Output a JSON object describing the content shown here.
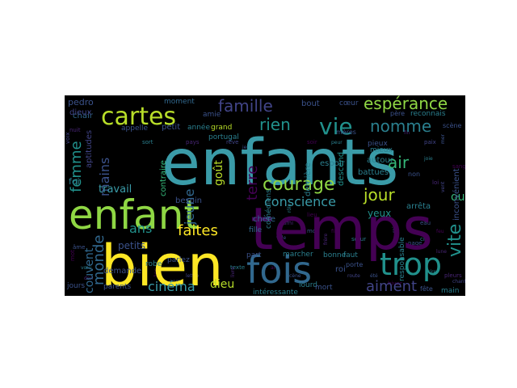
{
  "palette": {
    "background": "#000000",
    "page": "#ffffff",
    "teal": "#2a7f8e",
    "teal_light": "#3a9ba8",
    "yellow_green": "#b8de29",
    "bright_yellow": "#fde725",
    "green": "#5ec962",
    "light_green": "#8fd744",
    "purple": "#482575",
    "deep_purple": "#440154",
    "blue": "#31688e",
    "slate": "#3b528b",
    "mint": "#35b779",
    "sea": "#21918c",
    "grey_blue": "#414487"
  },
  "wordcloud": {
    "words": [
      {
        "text": "enfants",
        "color": "teal_light"
      },
      {
        "text": "temps",
        "color": "deep_purple"
      },
      {
        "text": "bien",
        "color": "bright_yellow"
      },
      {
        "text": "enfant",
        "color": "light_green"
      },
      {
        "text": "fois",
        "color": "blue"
      },
      {
        "text": "trop",
        "color": "sea"
      },
      {
        "text": "cartes",
        "color": "yellow_green"
      },
      {
        "text": "vie",
        "color": "sea"
      },
      {
        "text": "courage",
        "color": "light_green"
      },
      {
        "text": "espérance",
        "color": "light_green"
      },
      {
        "text": "famille",
        "color": "grey_blue"
      },
      {
        "text": "nomme",
        "color": "teal"
      },
      {
        "text": "rien",
        "color": "sea"
      },
      {
        "text": "faites",
        "color": "bright_yellow"
      },
      {
        "text": "aiment",
        "color": "grey_blue"
      },
      {
        "text": "femme",
        "color": "sea"
      },
      {
        "text": "vite",
        "color": "sea"
      },
      {
        "text": "jour",
        "color": "yellow_green"
      },
      {
        "text": "conscience",
        "color": "teal_light"
      },
      {
        "text": "mains",
        "color": "slate"
      },
      {
        "text": "monde",
        "color": "blue"
      },
      {
        "text": "terre",
        "color": "deep_purple"
      },
      {
        "text": "air",
        "color": "mint"
      },
      {
        "text": "ans",
        "color": "sea"
      },
      {
        "text": "cinéma",
        "color": "teal_light"
      },
      {
        "text": "dieu",
        "color": "yellow_green"
      },
      {
        "text": "couvent",
        "color": "blue"
      },
      {
        "text": "oui",
        "color": "mint"
      },
      {
        "text": "jeune",
        "color": "blue"
      },
      {
        "text": "goût",
        "color": "yellow_green"
      },
      {
        "text": "petits",
        "color": "slate"
      },
      {
        "text": "travail",
        "color": "teal_light"
      },
      {
        "text": "yeux",
        "color": "sea"
      },
      {
        "text": "pedro",
        "color": "slate"
      },
      {
        "text": "aptitudes",
        "color": "grey_blue"
      },
      {
        "text": "chair",
        "color": "blue"
      },
      {
        "text": "petit",
        "color": "slate"
      },
      {
        "text": "année",
        "color": "teal"
      },
      {
        "text": "appelle",
        "color": "slate"
      },
      {
        "text": "grand",
        "color": "yellow_green"
      },
      {
        "text": "portugal",
        "color": "teal"
      },
      {
        "text": "bout",
        "color": "slate"
      },
      {
        "text": "cœur",
        "color": "slate"
      },
      {
        "text": "mères",
        "color": "slate"
      },
      {
        "text": "reconnais",
        "color": "teal"
      },
      {
        "text": "moment",
        "color": "blue"
      },
      {
        "text": "amie",
        "color": "slate"
      },
      {
        "text": "contraire",
        "color": "mint"
      },
      {
        "text": "besoin",
        "color": "slate"
      },
      {
        "text": "autour",
        "color": "teal"
      },
      {
        "text": "espoir",
        "color": "teal"
      },
      {
        "text": "dernière",
        "color": "teal"
      },
      {
        "text": "battues",
        "color": "teal"
      },
      {
        "text": "descend",
        "color": "sea"
      },
      {
        "text": "mieux",
        "color": "teal"
      },
      {
        "text": "inconvénient",
        "color": "slate"
      },
      {
        "text": "non",
        "color": "slate"
      },
      {
        "text": "chère",
        "color": "blue"
      },
      {
        "text": "fille",
        "color": "blue"
      },
      {
        "text": "arrêta",
        "color": "teal"
      },
      {
        "text": "demande",
        "color": "slate"
      },
      {
        "text": "parlez",
        "color": "slate"
      },
      {
        "text": "robe",
        "color": "teal"
      },
      {
        "text": "parents",
        "color": "slate"
      },
      {
        "text": "jours",
        "color": "slate"
      },
      {
        "text": "marcher",
        "color": "teal"
      },
      {
        "text": "bonne",
        "color": "teal"
      },
      {
        "text": "faut",
        "color": "teal"
      },
      {
        "text": "roi",
        "color": "slate"
      },
      {
        "text": "porte",
        "color": "slate"
      },
      {
        "text": "intéressante",
        "color": "teal"
      },
      {
        "text": "lourd",
        "color": "teal"
      },
      {
        "text": "mort",
        "color": "slate"
      },
      {
        "text": "fête",
        "color": "slate"
      },
      {
        "text": "main",
        "color": "teal"
      },
      {
        "text": "foi",
        "color": "teal"
      },
      {
        "text": "dieux",
        "color": "grey_blue"
      },
      {
        "text": "comédiens",
        "color": "teal"
      },
      {
        "text": "part",
        "color": "slate"
      },
      {
        "text": "responsable",
        "color": "teal"
      },
      {
        "text": "scène",
        "color": "slate"
      },
      {
        "text": "père",
        "color": "slate"
      },
      {
        "text": "pieux",
        "color": "slate"
      }
    ]
  }
}
